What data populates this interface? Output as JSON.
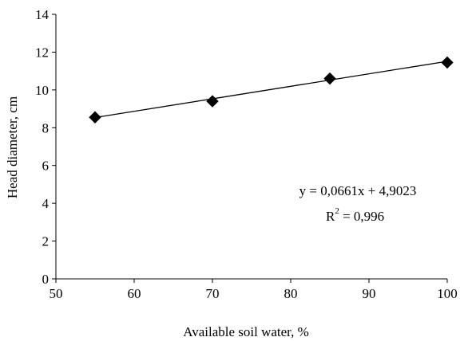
{
  "chart_data": {
    "type": "scatter",
    "xlabel": "Available soil water, %",
    "ylabel": "Head diameter, cm",
    "xlim": [
      50,
      100
    ],
    "ylim": [
      0,
      14
    ],
    "xticks": [
      50,
      60,
      70,
      80,
      90,
      100
    ],
    "yticks": [
      0,
      2,
      4,
      6,
      8,
      10,
      12,
      14
    ],
    "grid": false,
    "marker": "diamond",
    "marker_color": "#000000",
    "series": [
      {
        "x": [
          55,
          70,
          85,
          100
        ],
        "y": [
          8.55,
          9.4,
          10.6,
          11.45
        ]
      }
    ],
    "trendline": {
      "type": "linear",
      "slope": 0.0661,
      "intercept": 4.9023,
      "equation_label": "y = 0,0661x + 4,9023",
      "r2_prefix": "R",
      "r2_exponent": "2",
      "r2_value": " = 0,996"
    }
  }
}
